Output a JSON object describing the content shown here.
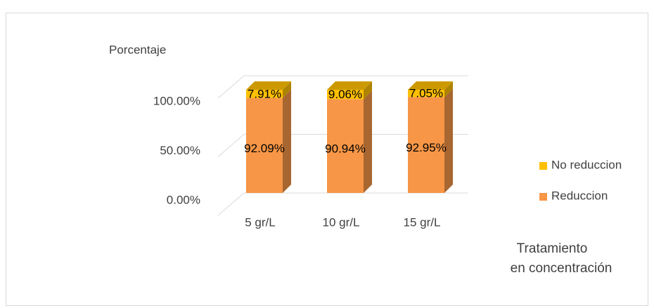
{
  "chart_data": {
    "type": "bar3d_stacked",
    "y_label": "Porcentaje",
    "x_label": [
      "Tratamiento",
      "en concentración"
    ],
    "categories": [
      "5 gr/L",
      "10 gr/L",
      "15 gr/L"
    ],
    "series": [
      {
        "name": "Reduccion",
        "color": "#f79646",
        "values": [
          92.09,
          90.94,
          92.95
        ],
        "value_labels": [
          "92.09%",
          "90.94%",
          "92.95%"
        ]
      },
      {
        "name": "No reduccion",
        "color": "#ffc000",
        "values": [
          7.91,
          9.06,
          7.05
        ],
        "value_labels": [
          "7.91%",
          "9.06%",
          "7.05%"
        ]
      }
    ],
    "ylim": [
      0,
      100
    ],
    "yticks": [
      {
        "value": 0,
        "label": "0.00%"
      },
      {
        "value": 50,
        "label": "50.00%"
      },
      {
        "value": 100,
        "label": "100.00%"
      }
    ],
    "grid": true,
    "legend": "right"
  }
}
